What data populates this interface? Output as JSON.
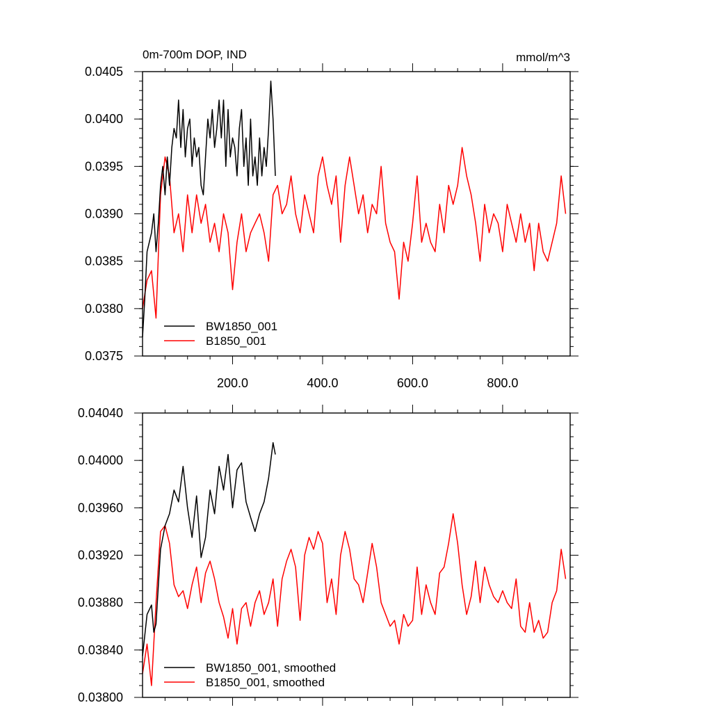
{
  "chart_data": [
    {
      "type": "line",
      "title": "0m-700m DOP, IND",
      "units": "mmol/m^3",
      "xlim": [
        0,
        950
      ],
      "ylim": [
        0.0375,
        0.0405
      ],
      "yticks": [
        "0.0375",
        "0.0380",
        "0.0385",
        "0.0390",
        "0.0395",
        "0.0400",
        "0.0405"
      ],
      "yminor_step": 0.0001,
      "xticks": [
        "200.0",
        "400.0",
        "600.0",
        "800.0"
      ],
      "xtick_values": [
        200,
        400,
        600,
        800
      ],
      "show_xtick_labels": true,
      "legend": "bottom-left",
      "series": [
        {
          "name": "BW1850_001",
          "color": "#000000",
          "x": [
            0,
            5,
            10,
            15,
            20,
            25,
            30,
            35,
            40,
            45,
            50,
            55,
            60,
            65,
            70,
            75,
            80,
            85,
            90,
            95,
            100,
            105,
            110,
            115,
            120,
            125,
            130,
            135,
            140,
            145,
            150,
            155,
            160,
            165,
            170,
            175,
            180,
            185,
            190,
            195,
            200,
            205,
            210,
            215,
            220,
            225,
            230,
            235,
            240,
            245,
            250,
            255,
            260,
            265,
            270,
            275,
            280,
            285,
            290,
            295
          ],
          "values": [
            0.0377,
            0.0381,
            0.0386,
            0.0387,
            0.0388,
            0.039,
            0.0386,
            0.0389,
            0.0393,
            0.0395,
            0.0392,
            0.0396,
            0.0393,
            0.0397,
            0.0399,
            0.0398,
            0.0402,
            0.0397,
            0.0401,
            0.0396,
            0.0399,
            0.04,
            0.0395,
            0.0398,
            0.0396,
            0.0397,
            0.0393,
            0.0392,
            0.0396,
            0.04,
            0.0398,
            0.0401,
            0.0397,
            0.0399,
            0.0402,
            0.0398,
            0.0402,
            0.0395,
            0.0401,
            0.0396,
            0.0398,
            0.0397,
            0.0394,
            0.0399,
            0.0401,
            0.0395,
            0.0398,
            0.0393,
            0.04,
            0.0394,
            0.0396,
            0.0393,
            0.0398,
            0.0394,
            0.0397,
            0.0395,
            0.0399,
            0.0404,
            0.04,
            0.0394
          ]
        },
        {
          "name": "B1850_001",
          "color": "#ff0000",
          "x": [
            0,
            10,
            20,
            30,
            40,
            50,
            60,
            70,
            80,
            90,
            100,
            110,
            120,
            130,
            140,
            150,
            160,
            170,
            180,
            190,
            200,
            210,
            220,
            230,
            240,
            250,
            260,
            270,
            280,
            290,
            300,
            310,
            320,
            330,
            340,
            350,
            360,
            370,
            380,
            390,
            400,
            410,
            420,
            430,
            440,
            450,
            460,
            470,
            480,
            490,
            500,
            510,
            520,
            530,
            540,
            550,
            560,
            570,
            580,
            590,
            600,
            610,
            620,
            630,
            640,
            650,
            660,
            670,
            680,
            690,
            700,
            710,
            720,
            730,
            740,
            750,
            760,
            770,
            780,
            790,
            800,
            810,
            820,
            830,
            840,
            850,
            860,
            870,
            880,
            890,
            900,
            910,
            920,
            930,
            940
          ],
          "values": [
            0.038,
            0.0383,
            0.0384,
            0.0379,
            0.0392,
            0.0396,
            0.0394,
            0.0388,
            0.039,
            0.0386,
            0.0392,
            0.0388,
            0.0392,
            0.0389,
            0.0391,
            0.0387,
            0.0389,
            0.0386,
            0.039,
            0.0388,
            0.0382,
            0.0387,
            0.039,
            0.0386,
            0.0388,
            0.0389,
            0.039,
            0.0388,
            0.0385,
            0.0392,
            0.0393,
            0.039,
            0.0391,
            0.0394,
            0.039,
            0.0388,
            0.0392,
            0.039,
            0.0388,
            0.0394,
            0.0396,
            0.0393,
            0.0391,
            0.0394,
            0.0387,
            0.0393,
            0.0396,
            0.0393,
            0.039,
            0.0392,
            0.0388,
            0.0391,
            0.039,
            0.0395,
            0.0389,
            0.0387,
            0.0386,
            0.0381,
            0.0387,
            0.0385,
            0.0389,
            0.0394,
            0.0387,
            0.0389,
            0.0387,
            0.0386,
            0.0391,
            0.0388,
            0.0393,
            0.0391,
            0.0393,
            0.0397,
            0.0394,
            0.0392,
            0.0389,
            0.0385,
            0.0391,
            0.0388,
            0.039,
            0.0389,
            0.0386,
            0.0391,
            0.0389,
            0.0387,
            0.039,
            0.0387,
            0.0389,
            0.0384,
            0.0389,
            0.0386,
            0.0385,
            0.0387,
            0.0389,
            0.0394,
            0.039
          ]
        }
      ]
    },
    {
      "type": "line",
      "xlim": [
        0,
        950
      ],
      "ylim": [
        0.038,
        0.0404
      ],
      "yticks": [
        "0.03800",
        "0.03840",
        "0.03880",
        "0.03920",
        "0.03960",
        "0.04000",
        "0.04040"
      ],
      "yminor_step": 0.0001,
      "xticks": [],
      "xtick_values": [
        200,
        400,
        600,
        800
      ],
      "show_xtick_labels": false,
      "legend": "bottom-left",
      "series": [
        {
          "name": "BW1850_001, smoothed",
          "color": "#000000",
          "x": [
            0,
            10,
            20,
            25,
            30,
            40,
            50,
            60,
            70,
            80,
            90,
            100,
            110,
            120,
            130,
            140,
            150,
            160,
            170,
            180,
            190,
            200,
            210,
            220,
            230,
            240,
            250,
            260,
            270,
            280,
            290,
            295
          ],
          "values": [
            0.03835,
            0.0387,
            0.03878,
            0.03855,
            0.03862,
            0.03925,
            0.03945,
            0.03955,
            0.03975,
            0.03965,
            0.03995,
            0.0396,
            0.03935,
            0.0397,
            0.03918,
            0.03935,
            0.03975,
            0.03955,
            0.03995,
            0.03975,
            0.04005,
            0.0396,
            0.03992,
            0.03998,
            0.03965,
            0.03952,
            0.0394,
            0.03955,
            0.03965,
            0.03985,
            0.04015,
            0.04005
          ]
        },
        {
          "name": "B1850_001, smoothed",
          "color": "#ff0000",
          "x": [
            0,
            10,
            20,
            30,
            40,
            50,
            60,
            70,
            80,
            90,
            100,
            110,
            120,
            130,
            140,
            150,
            160,
            170,
            180,
            190,
            200,
            210,
            220,
            230,
            240,
            250,
            260,
            270,
            280,
            290,
            300,
            310,
            320,
            330,
            340,
            350,
            360,
            370,
            380,
            390,
            400,
            410,
            420,
            430,
            440,
            450,
            460,
            470,
            480,
            490,
            500,
            510,
            520,
            530,
            540,
            550,
            560,
            570,
            580,
            590,
            600,
            610,
            620,
            630,
            640,
            650,
            660,
            670,
            680,
            690,
            700,
            710,
            720,
            730,
            740,
            750,
            760,
            770,
            780,
            790,
            800,
            810,
            820,
            830,
            840,
            850,
            860,
            870,
            880,
            890,
            900,
            910,
            920,
            930,
            940
          ],
          "values": [
            0.0382,
            0.03845,
            0.0381,
            0.0388,
            0.0394,
            0.03945,
            0.0393,
            0.03895,
            0.03885,
            0.0389,
            0.03875,
            0.03895,
            0.0391,
            0.0388,
            0.03905,
            0.03915,
            0.039,
            0.0388,
            0.03868,
            0.0385,
            0.03875,
            0.03845,
            0.03875,
            0.0388,
            0.0386,
            0.0388,
            0.0389,
            0.0387,
            0.0388,
            0.039,
            0.0386,
            0.039,
            0.03915,
            0.03925,
            0.0391,
            0.03865,
            0.0392,
            0.03935,
            0.03925,
            0.0394,
            0.0393,
            0.0388,
            0.039,
            0.0387,
            0.0392,
            0.0394,
            0.03925,
            0.039,
            0.03895,
            0.0388,
            0.03905,
            0.0393,
            0.0391,
            0.0388,
            0.0387,
            0.0386,
            0.03865,
            0.03845,
            0.0387,
            0.0386,
            0.03865,
            0.0391,
            0.0387,
            0.03895,
            0.0388,
            0.0387,
            0.03905,
            0.0391,
            0.0393,
            0.03955,
            0.0393,
            0.03895,
            0.0387,
            0.03885,
            0.03915,
            0.0388,
            0.0391,
            0.03895,
            0.03885,
            0.0388,
            0.0389,
            0.0388,
            0.03875,
            0.039,
            0.0386,
            0.03855,
            0.0388,
            0.03855,
            0.03865,
            0.0385,
            0.03855,
            0.0388,
            0.0389,
            0.03925,
            0.039
          ]
        }
      ]
    }
  ]
}
